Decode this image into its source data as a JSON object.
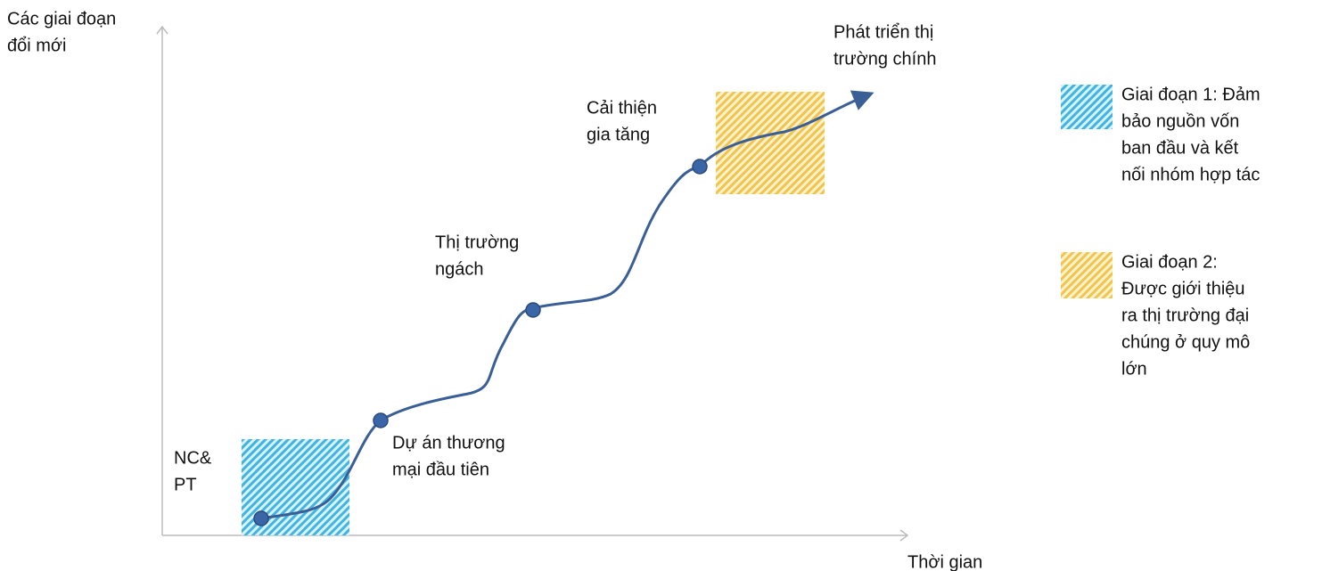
{
  "axes": {
    "y_label": [
      "Các giai đoạn",
      "đổi mới"
    ],
    "x_label": "Thời gian"
  },
  "stages": [
    {
      "label": [
        "NC&",
        "PT"
      ]
    },
    {
      "label": [
        "Dự án thương",
        "mại đầu tiên"
      ]
    },
    {
      "label": [
        "Thị trường",
        "ngách"
      ]
    },
    {
      "label": [
        "Cải thiện",
        "gia tăng"
      ]
    },
    {
      "label": [
        "Phát triển thị",
        "trường chính"
      ]
    }
  ],
  "legend": [
    {
      "label": [
        "Giai đoạn 1: Đảm",
        "bảo nguồn vốn",
        "ban đầu và kết",
        "nối nhóm hợp tác"
      ]
    },
    {
      "label": [
        "Giai đoạn 2:",
        "Được giới thiệu",
        "ra thị trường đại",
        "chúng ở quy mô",
        "lớn"
      ]
    }
  ]
}
